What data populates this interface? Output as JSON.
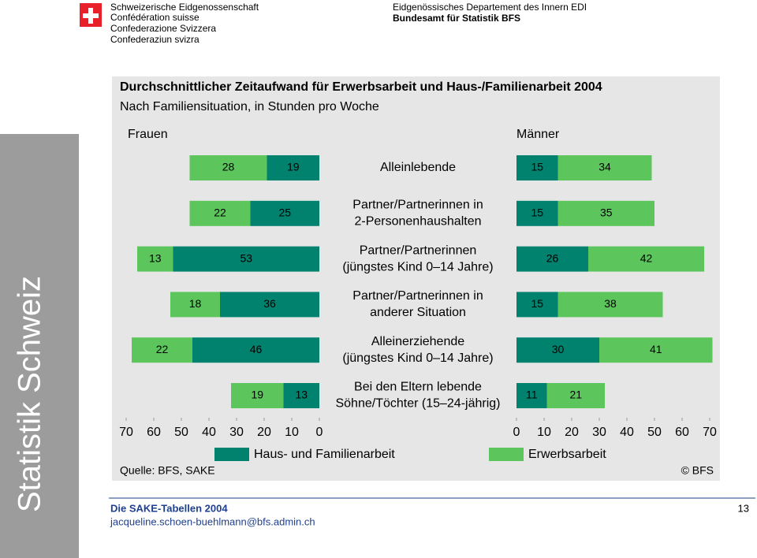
{
  "header": {
    "logo_lines": [
      "Schweizerische Eidgenossenschaft",
      "Confédération suisse",
      "Confederazione Svizzera",
      "Confederaziun svizra"
    ],
    "department": "Eidgenössisches Departement des Innern EDI",
    "office": "Bundesamt für Statistik BFS"
  },
  "sidebar": "Statistik Schweiz",
  "chart_data": {
    "type": "butterfly-bar",
    "title": "Durchschnittlicher Zeitaufwand für Erwerbsarbeit und Haus-/Familienarbeit 2004",
    "subtitle": "Nach Familiensituation, in Stunden pro Woche",
    "panels": [
      "Frauen",
      "Männer"
    ],
    "categories": [
      [
        "Alleinlebende"
      ],
      [
        "Partner/Partnerinnen in",
        "2-Personenhaushalten"
      ],
      [
        "Partner/Partnerinnen",
        "(jüngstes Kind 0–14 Jahre)"
      ],
      [
        "Partner/Partnerinnen in",
        "anderer Situation"
      ],
      [
        "Alleinerziehende",
        "(jüngstes Kind 0–14 Jahre)"
      ],
      [
        "Bei den Eltern lebende",
        "Söhne/Töchter (15–24-jährig)"
      ]
    ],
    "series": [
      {
        "name": "Haus- und Familienarbeit",
        "color": "#00826f",
        "values": [
          [
            19,
            25,
            53,
            36,
            46,
            13
          ],
          [
            15,
            15,
            26,
            15,
            30,
            11
          ]
        ]
      },
      {
        "name": "Erwerbsarbeit",
        "color": "#5cc65c",
        "values": [
          [
            28,
            22,
            13,
            18,
            22,
            19
          ],
          [
            34,
            35,
            42,
            38,
            41,
            21
          ]
        ]
      }
    ],
    "xlim": [
      0,
      70
    ],
    "xticks": [
      0,
      10,
      20,
      30,
      40,
      50,
      60,
      70
    ],
    "source": "Quelle: BFS, SAKE",
    "copyright": "© BFS"
  },
  "footer": {
    "title": "Die SAKE-Tabellen 2004",
    "email": "jacqueline.schoen-buehlmann@bfs.admin.ch",
    "page": "13"
  }
}
